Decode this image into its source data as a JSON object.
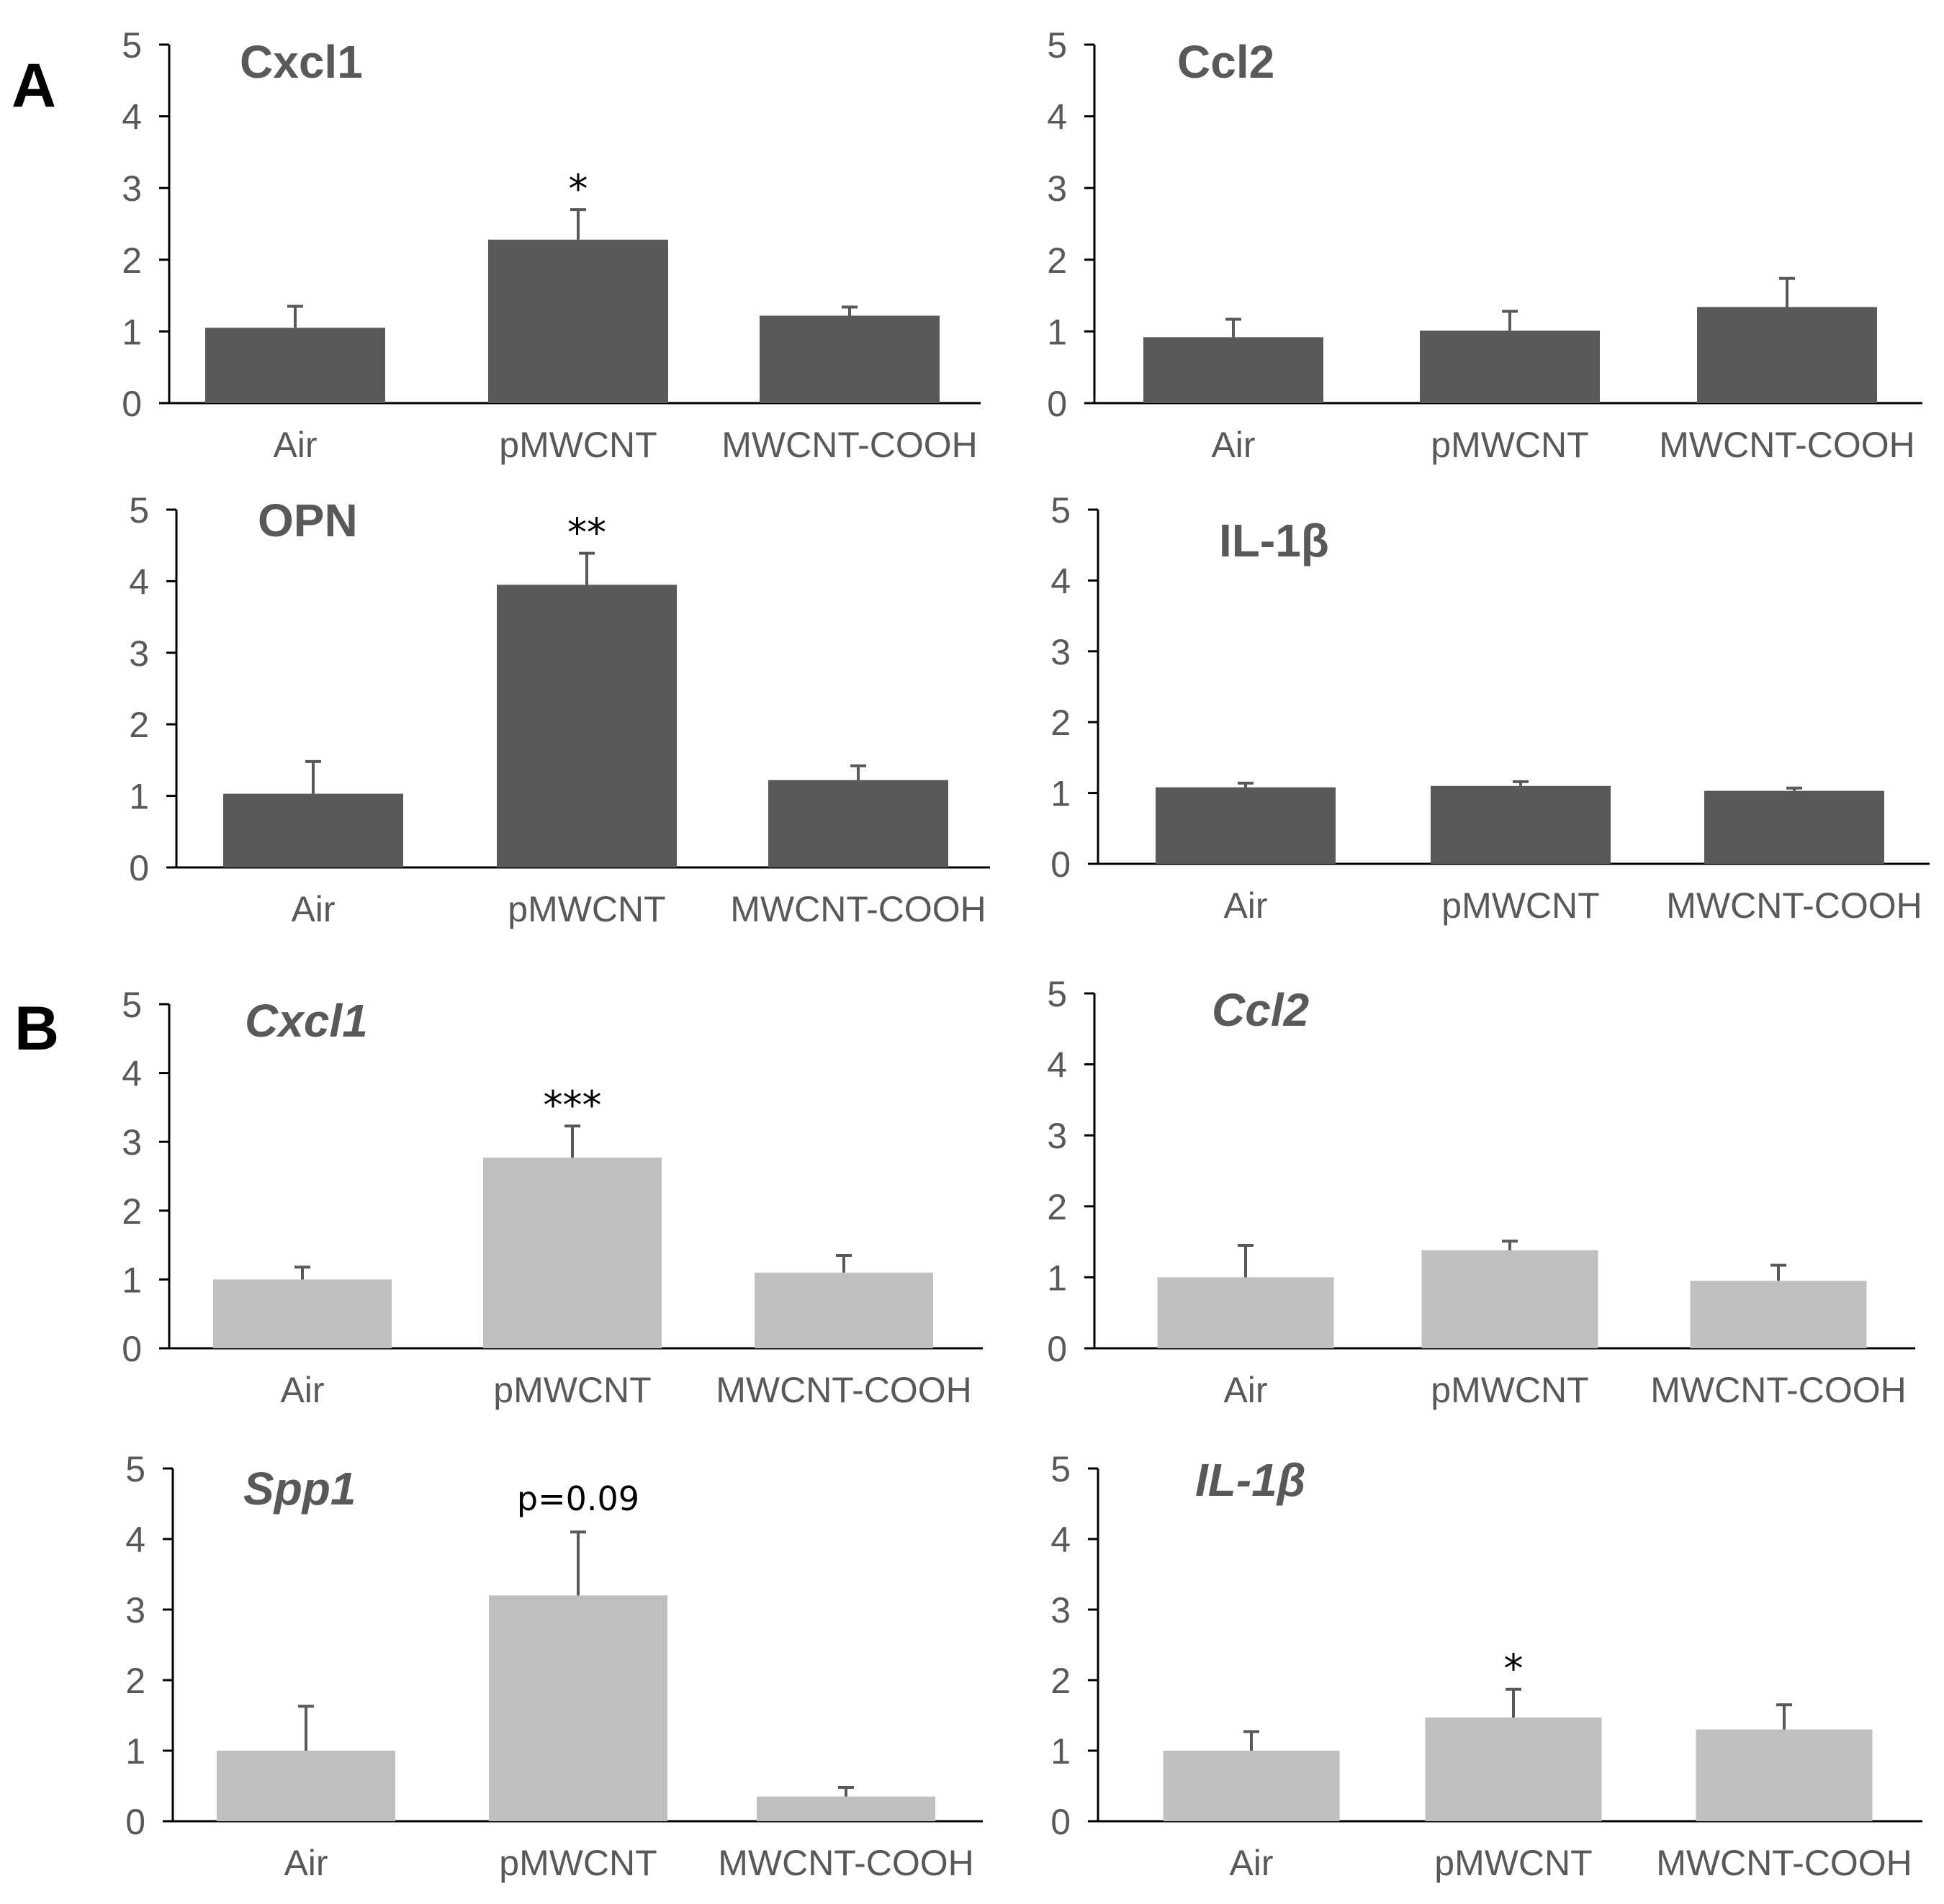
{
  "panel_labels": [
    "A",
    "B"
  ],
  "colors": {
    "dark_bar": "#595959",
    "light_bar": "#bfbfbf",
    "axis": "#000000",
    "text": "#595959",
    "error": "#595959"
  },
  "chart_data": [
    {
      "type": "bar",
      "panel": "A",
      "title": "Cxcl1",
      "italic": false,
      "categories": [
        "Air",
        "pMWCNT",
        "MWCNT-COOH"
      ],
      "values": [
        1.05,
        2.28,
        1.22
      ],
      "errors": [
        0.3,
        0.42,
        0.12
      ],
      "annotations": [
        "",
        "*",
        ""
      ],
      "yticks": [
        "0",
        "1",
        "2",
        "3",
        "4",
        "5"
      ],
      "ylim": [
        0,
        5
      ]
    },
    {
      "type": "bar",
      "panel": "A",
      "title": "Ccl2",
      "italic": false,
      "categories": [
        "Air",
        "pMWCNT",
        "MWCNT-COOH"
      ],
      "values": [
        0.92,
        1.01,
        1.34
      ],
      "errors": [
        0.25,
        0.27,
        0.4
      ],
      "annotations": [
        "",
        "",
        ""
      ],
      "yticks": [
        "0",
        "1",
        "2",
        "3",
        "4",
        "5"
      ],
      "ylim": [
        0,
        5
      ]
    },
    {
      "type": "bar",
      "panel": "A",
      "title": "OPN",
      "italic": false,
      "categories": [
        "Air",
        "pMWCNT",
        "MWCNT-COOH"
      ],
      "values": [
        1.03,
        3.95,
        1.22
      ],
      "errors": [
        0.45,
        0.44,
        0.2
      ],
      "annotations": [
        "",
        "**",
        ""
      ],
      "yticks": [
        "0",
        "1",
        "2",
        "3",
        "4",
        "5"
      ],
      "ylim": [
        0,
        5
      ]
    },
    {
      "type": "bar",
      "panel": "A",
      "title": "IL-1β",
      "italic": false,
      "categories": [
        "Air",
        "pMWCNT",
        "MWCNT-COOH"
      ],
      "values": [
        1.08,
        1.1,
        1.03
      ],
      "errors": [
        0.06,
        0.06,
        0.04
      ],
      "annotations": [
        "",
        "",
        ""
      ],
      "yticks": [
        "0",
        "1",
        "2",
        "3",
        "4",
        "5"
      ],
      "ylim": [
        0,
        5
      ]
    },
    {
      "type": "bar",
      "panel": "B",
      "title": "Cxcl1",
      "italic": true,
      "categories": [
        "Air",
        "pMWCNT",
        "MWCNT-COOH"
      ],
      "values": [
        1.0,
        2.77,
        1.1
      ],
      "errors": [
        0.18,
        0.46,
        0.25
      ],
      "annotations": [
        "",
        "***",
        ""
      ],
      "yticks": [
        "0",
        "1",
        "2",
        "3",
        "4",
        "5"
      ],
      "ylim": [
        0,
        5
      ]
    },
    {
      "type": "bar",
      "panel": "B",
      "title": "Ccl2",
      "italic": true,
      "categories": [
        "Air",
        "pMWCNT",
        "MWCNT-COOH"
      ],
      "values": [
        1.0,
        1.38,
        0.95
      ],
      "errors": [
        0.45,
        0.13,
        0.22
      ],
      "annotations": [
        "",
        "",
        ""
      ],
      "yticks": [
        "0",
        "1",
        "2",
        "3",
        "4",
        "5"
      ],
      "ylim": [
        0,
        5
      ]
    },
    {
      "type": "bar",
      "panel": "B",
      "title": "Spp1",
      "italic": true,
      "categories": [
        "Air",
        "pMWCNT",
        "MWCNT-COOH"
      ],
      "values": [
        1.0,
        3.2,
        0.35
      ],
      "errors": [
        0.63,
        0.9,
        0.13
      ],
      "annotations": [
        "",
        "p=0.09",
        ""
      ],
      "yticks": [
        "0",
        "1",
        "2",
        "3",
        "4",
        "5"
      ],
      "ylim": [
        0,
        5
      ]
    },
    {
      "type": "bar",
      "panel": "B",
      "title": "IL-1β",
      "italic": true,
      "categories": [
        "Air",
        "pMWCNT",
        "MWCNT-COOH"
      ],
      "values": [
        1.0,
        1.47,
        1.3
      ],
      "errors": [
        0.27,
        0.4,
        0.35
      ],
      "annotations": [
        "",
        "*",
        ""
      ],
      "yticks": [
        "0",
        "1",
        "2",
        "3",
        "4",
        "5"
      ],
      "ylim": [
        0,
        5
      ]
    }
  ]
}
